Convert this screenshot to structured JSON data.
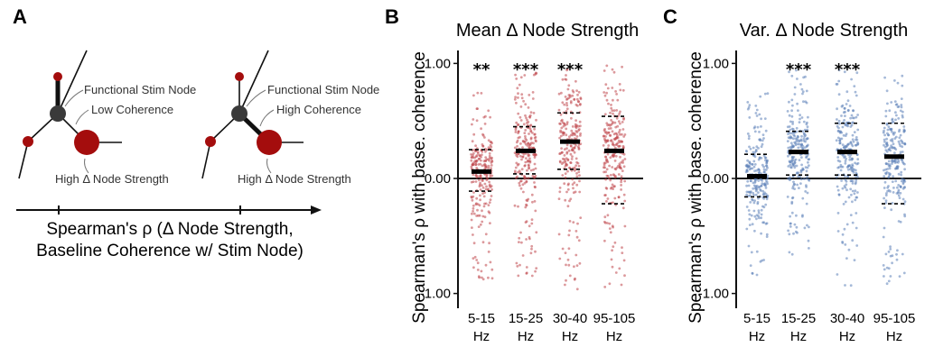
{
  "panels": {
    "A": {
      "letter": "A",
      "left_diagram": {
        "label_stim": "Functional Stim Node",
        "label_coh": "Low Coherence",
        "label_strength": "High Δ Node Strength"
      },
      "right_diagram": {
        "label_stim": "Functional Stim Node",
        "label_coh": "High Coherence",
        "label_strength": "High Δ Node Strength"
      },
      "arrow_label_line1": "Spearman's ρ (Δ Node Strength,",
      "arrow_label_line2": "Baseline Coherence w/ Stim Node)"
    },
    "B": {
      "letter": "B"
    },
    "C": {
      "letter": "C"
    }
  },
  "colors": {
    "node_red": "#a40d0d",
    "node_dark": "#3a3a3a",
    "points_B": "#c0464a",
    "points_C": "#5b7fb8"
  },
  "chart_data": [
    {
      "type": "scatter",
      "panel": "B",
      "title": "Mean Δ Node Strength",
      "ylabel": "Spearman's ρ with base. coherence",
      "ylim": [
        -1.05,
        1.05
      ],
      "yticks": [
        -1.0,
        0.0,
        1.0
      ],
      "ytick_labels": [
        "-1.00",
        "0.00",
        "1.00"
      ],
      "categories": [
        [
          "5-15",
          "Hz"
        ],
        [
          "15-25",
          "Hz"
        ],
        [
          "30-40",
          "Hz"
        ],
        [
          "95-105",
          "Hz"
        ]
      ],
      "means": [
        0.06,
        0.24,
        0.32,
        0.24
      ],
      "upper": [
        0.25,
        0.45,
        0.57,
        0.54
      ],
      "lower": [
        -0.11,
        0.04,
        0.08,
        -0.22
      ],
      "significance": [
        "**",
        "***",
        "***",
        ""
      ],
      "point_ranges": [
        [
          -0.88,
          0.88
        ],
        [
          -0.85,
          0.92
        ],
        [
          -1.0,
          1.0
        ],
        [
          -0.95,
          0.98
        ]
      ],
      "n_points": [
        230,
        230,
        230,
        230
      ]
    },
    {
      "type": "scatter",
      "panel": "C",
      "title": "Var. Δ Node Strength",
      "ylabel": "Spearman's ρ with base. coherence",
      "ylim": [
        -1.05,
        1.05
      ],
      "yticks": [
        -1.0,
        0.0,
        1.0
      ],
      "ytick_labels": [
        "-1.00",
        "0.00",
        "1.00"
      ],
      "categories": [
        [
          "5-15",
          "Hz"
        ],
        [
          "15-25",
          "Hz"
        ],
        [
          "30-40",
          "Hz"
        ],
        [
          "95-105",
          "Hz"
        ]
      ],
      "means": [
        0.02,
        0.23,
        0.23,
        0.19
      ],
      "upper": [
        0.21,
        0.41,
        0.48,
        0.48
      ],
      "lower": [
        -0.16,
        0.03,
        0.03,
        -0.22
      ],
      "significance": [
        "",
        "***",
        "***",
        ""
      ],
      "point_ranges": [
        [
          -0.85,
          0.75
        ],
        [
          -0.7,
          0.95
        ],
        [
          -1.0,
          0.98
        ],
        [
          -0.98,
          0.9
        ]
      ],
      "n_points": [
        230,
        230,
        230,
        230
      ]
    }
  ]
}
